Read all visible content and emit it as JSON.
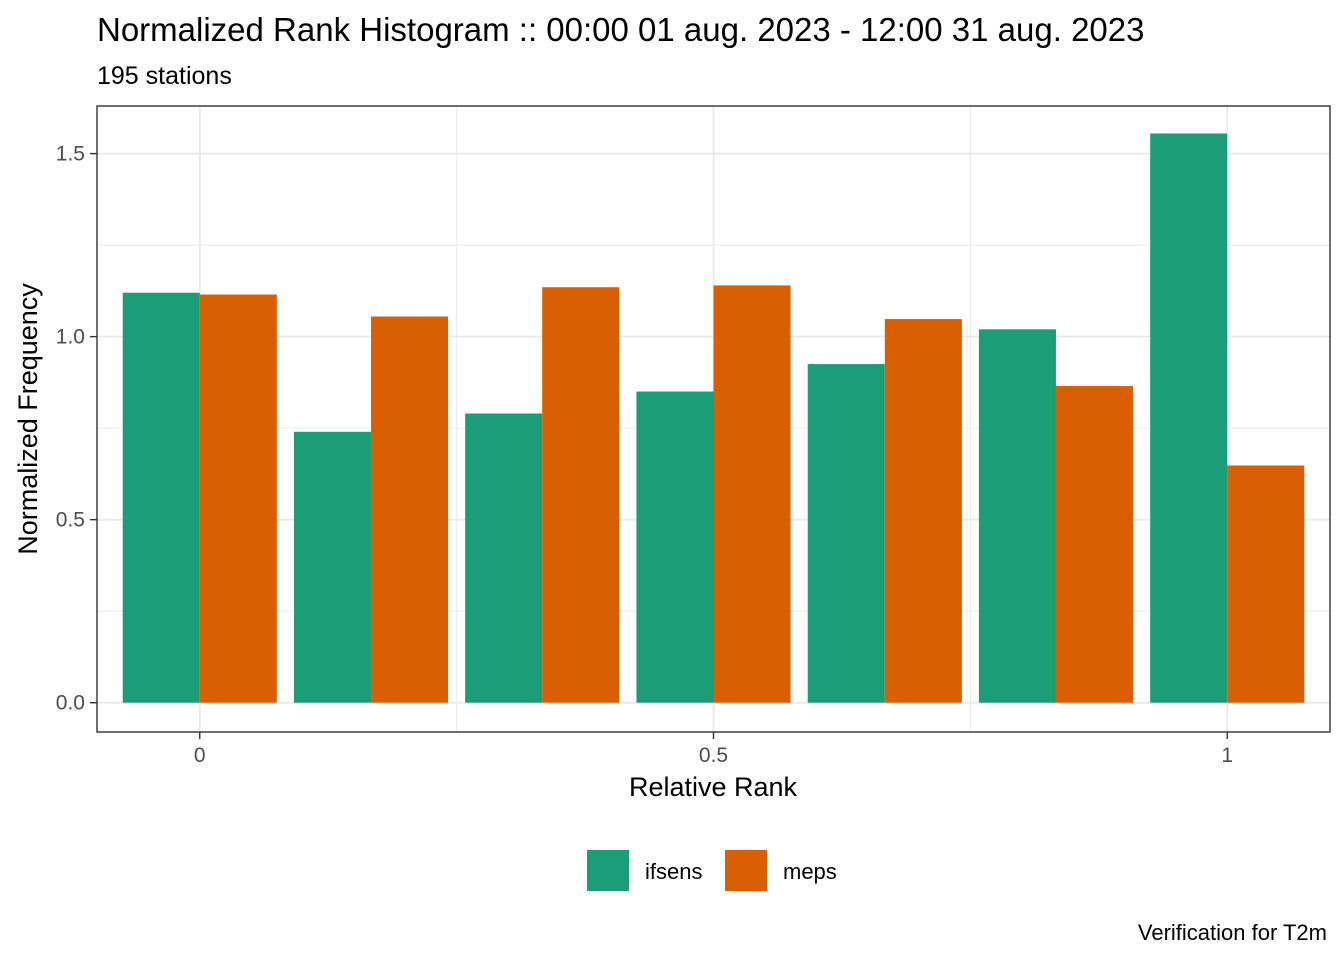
{
  "chart_data": {
    "type": "bar",
    "title": "Normalized Rank Histogram :: 00:00 01 aug. 2023 - 12:00 31 aug. 2023",
    "subtitle": "195 stations",
    "xlabel": "Relative Rank",
    "ylabel": "Normalized Frequency",
    "caption": "Verification for T2m",
    "x": [
      0,
      0.1667,
      0.3333,
      0.5,
      0.6667,
      0.8333,
      1
    ],
    "xlim": [
      -0.1,
      1.1
    ],
    "ylim": [
      -0.08,
      1.63
    ],
    "x_ticks": [
      0,
      0.5,
      1
    ],
    "x_tick_labels": [
      "0",
      "0.5",
      "1"
    ],
    "y_ticks": [
      0,
      0.5,
      1,
      1.5
    ],
    "y_tick_labels": [
      "0.0",
      "0.5",
      "1.0",
      "1.5"
    ],
    "grid": true,
    "legend_position": "bottom",
    "series": [
      {
        "name": "ifsens",
        "color": "#1B9E77",
        "values": [
          1.12,
          0.74,
          0.79,
          0.85,
          0.925,
          1.02,
          1.555
        ]
      },
      {
        "name": "meps",
        "color": "#D95F02",
        "values": [
          1.115,
          1.055,
          1.135,
          1.14,
          1.048,
          0.865,
          0.648
        ]
      }
    ]
  }
}
